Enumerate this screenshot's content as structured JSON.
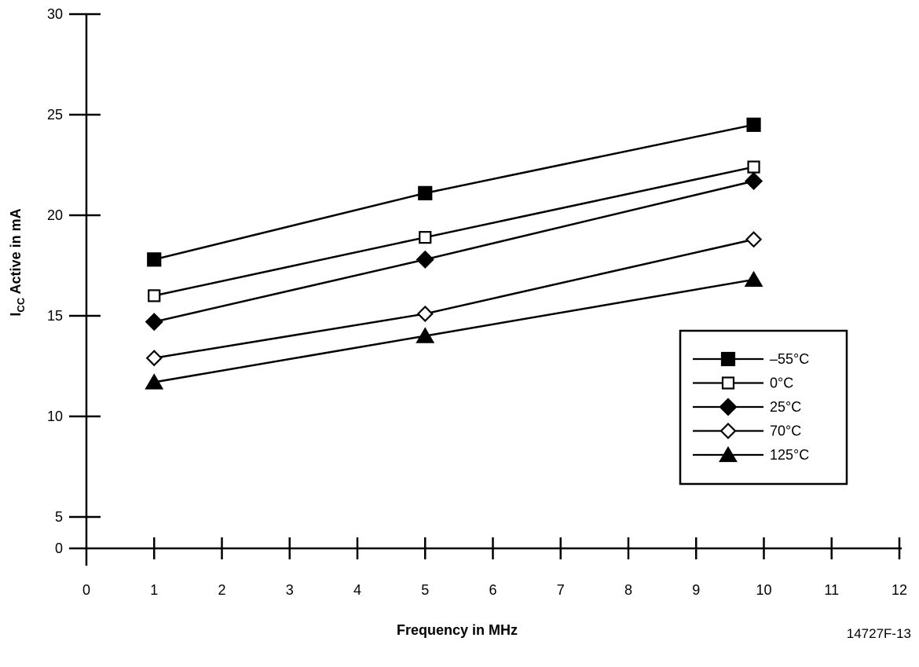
{
  "chart_data": {
    "type": "line",
    "xlabel": "Frequency in MHz",
    "ylabel": {
      "main": "I",
      "subscript": "CC",
      "rest": " Active in mA"
    },
    "x_ticks": [
      0,
      1,
      2,
      3,
      4,
      5,
      6,
      7,
      8,
      9,
      10,
      11,
      12
    ],
    "y_ticks": [
      0,
      5,
      10,
      15,
      20,
      25,
      30
    ],
    "xlim": [
      0,
      12
    ],
    "y_axis_scale": "non-linear (0–5 compressed, 5–30 uniform)",
    "grid": false,
    "legend_placement": "right",
    "x": [
      1,
      5,
      9.85
    ],
    "series": [
      {
        "name": "–55°C",
        "marker": "filled-square",
        "values": [
          17.8,
          21.1,
          24.5
        ]
      },
      {
        "name": "0°C",
        "marker": "open-square",
        "values": [
          16.0,
          18.9,
          22.4
        ]
      },
      {
        "name": "25°C",
        "marker": "filled-diamond",
        "values": [
          14.7,
          17.8,
          21.7
        ]
      },
      {
        "name": "70°C",
        "marker": "open-diamond",
        "values": [
          12.9,
          15.1,
          18.8
        ]
      },
      {
        "name": "125°C",
        "marker": "filled-triangle",
        "values": [
          11.7,
          14.0,
          16.8
        ]
      }
    ]
  },
  "figure_id": "14727F-13",
  "colors": {
    "ink": "#000000",
    "background": "#ffffff"
  }
}
